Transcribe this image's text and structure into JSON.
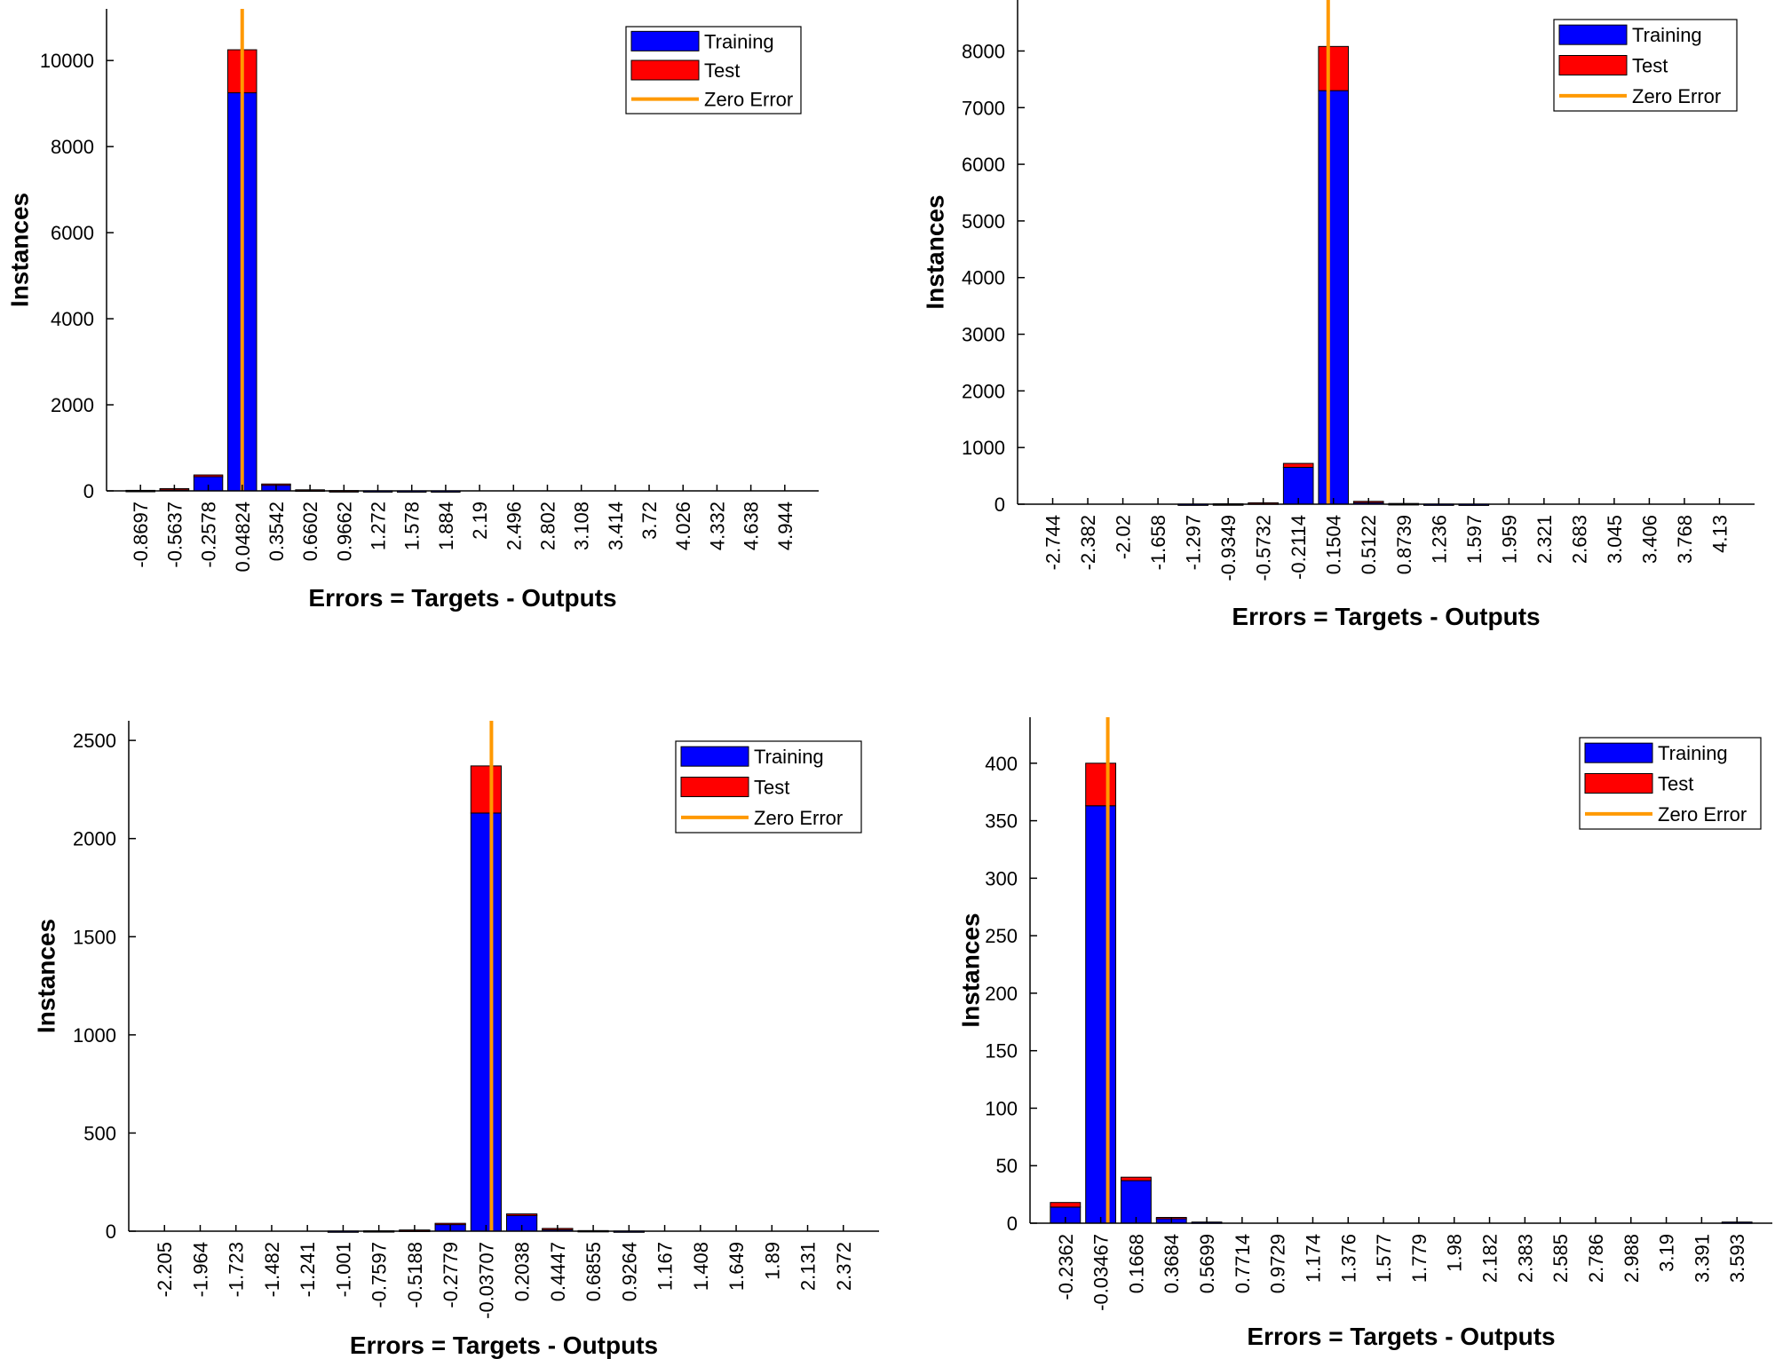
{
  "colors": {
    "training": "#0000ff",
    "test": "#ff0000",
    "zero_error": "#ff9900",
    "axis": "#000000"
  },
  "chart_data": [
    {
      "type": "bar",
      "stacked": true,
      "title": "",
      "xlabel": "Errors = Targets - Outputs",
      "ylabel": "Instances",
      "ylim": [
        0,
        11200
      ],
      "yticks": [
        "0",
        "2000",
        "4000",
        "6000",
        "8000",
        "10000"
      ],
      "categories": [
        "-0.8697",
        "-0.5637",
        "-0.2578",
        "0.04824",
        "0.3542",
        "0.6602",
        "0.9662",
        "1.272",
        "1.578",
        "1.884",
        "2.19",
        "2.496",
        "2.802",
        "3.108",
        "3.414",
        "3.72",
        "4.026",
        "4.332",
        "4.638",
        "4.944"
      ],
      "series": [
        {
          "name": "Training",
          "values": [
            10,
            45,
            330,
            9250,
            140,
            20,
            5,
            2,
            1,
            1,
            0,
            0,
            0,
            0,
            0,
            0,
            0,
            0,
            0,
            0
          ]
        },
        {
          "name": "Test",
          "values": [
            2,
            8,
            40,
            1000,
            20,
            5,
            1,
            0,
            0,
            0,
            0,
            0,
            0,
            0,
            0,
            0,
            0,
            0,
            0,
            0
          ]
        }
      ],
      "zero_error_bin": 3,
      "legend": {
        "position": "top-right",
        "entries": [
          "Training",
          "Test",
          "Zero Error"
        ]
      }
    },
    {
      "type": "bar",
      "stacked": true,
      "title": "",
      "xlabel": "Errors = Targets - Outputs",
      "ylabel": "Instances",
      "ylim": [
        0,
        8900
      ],
      "yticks": [
        "0",
        "1000",
        "2000",
        "3000",
        "4000",
        "5000",
        "6000",
        "7000",
        "8000"
      ],
      "categories": [
        "-2.744",
        "-2.382",
        "-2.02",
        "-1.658",
        "-1.297",
        "-0.9349",
        "-0.5732",
        "-0.2114",
        "0.1504",
        "0.5122",
        "0.8739",
        "1.236",
        "1.597",
        "1.959",
        "2.321",
        "2.683",
        "3.045",
        "3.406",
        "3.768",
        "4.13"
      ],
      "series": [
        {
          "name": "Training",
          "values": [
            0,
            0,
            0,
            0,
            2,
            5,
            20,
            650,
            7300,
            40,
            10,
            2,
            1,
            0,
            0,
            0,
            0,
            0,
            0,
            0
          ]
        },
        {
          "name": "Test",
          "values": [
            0,
            0,
            0,
            0,
            0,
            1,
            5,
            70,
            780,
            10,
            2,
            0,
            0,
            0,
            0,
            0,
            0,
            0,
            0,
            0
          ]
        }
      ],
      "zero_error_bin": 7.85,
      "legend": {
        "position": "top-right",
        "entries": [
          "Training",
          "Test",
          "Zero Error"
        ]
      }
    },
    {
      "type": "bar",
      "stacked": true,
      "title": "",
      "xlabel": "Errors = Targets - Outputs",
      "ylabel": "Instances",
      "ylim": [
        0,
        2600
      ],
      "yticks": [
        "0",
        "500",
        "1000",
        "1500",
        "2000",
        "2500"
      ],
      "categories": [
        "-2.205",
        "-1.964",
        "-1.723",
        "-1.482",
        "-1.241",
        "-1.001",
        "-0.7597",
        "-0.5188",
        "-0.2779",
        "-0.03707",
        "0.2038",
        "0.4447",
        "0.6855",
        "0.9264",
        "1.167",
        "1.408",
        "1.649",
        "1.89",
        "2.131",
        "2.372"
      ],
      "series": [
        {
          "name": "Training",
          "values": [
            0,
            0,
            0,
            0,
            0,
            1,
            2,
            5,
            35,
            2130,
            80,
            12,
            3,
            1,
            0,
            0,
            0,
            0,
            0,
            0
          ]
        },
        {
          "name": "Test",
          "values": [
            0,
            0,
            0,
            0,
            0,
            0,
            0,
            1,
            5,
            240,
            8,
            2,
            0,
            0,
            0,
            0,
            0,
            0,
            0,
            0
          ]
        }
      ],
      "zero_error_bin": 9.15,
      "legend": {
        "position": "top-right",
        "entries": [
          "Training",
          "Test",
          "Zero Error"
        ]
      }
    },
    {
      "type": "bar",
      "stacked": true,
      "title": "",
      "xlabel": "Errors = Targets - Outputs",
      "ylabel": "Instances",
      "ylim": [
        0,
        440
      ],
      "yticks": [
        "0",
        "50",
        "100",
        "150",
        "200",
        "250",
        "300",
        "350",
        "400"
      ],
      "categories": [
        "-0.2362",
        "-0.03467",
        "0.1668",
        "0.3684",
        "0.5699",
        "0.7714",
        "0.9729",
        "1.174",
        "1.376",
        "1.577",
        "1.779",
        "1.98",
        "2.182",
        "2.383",
        "2.585",
        "2.786",
        "2.988",
        "3.19",
        "3.391",
        "3.593"
      ],
      "series": [
        {
          "name": "Training",
          "values": [
            14,
            363,
            37,
            4,
            1,
            0,
            0,
            0,
            0,
            0,
            0,
            0,
            0,
            0,
            0,
            0,
            0,
            0,
            0,
            1
          ]
        },
        {
          "name": "Test",
          "values": [
            4,
            37,
            3,
            1,
            0,
            0,
            0,
            0,
            0,
            0,
            0,
            0,
            0,
            0,
            0,
            0,
            0,
            0,
            0,
            0
          ]
        }
      ],
      "zero_error_bin": 1.2,
      "legend": {
        "position": "top-right",
        "entries": [
          "Training",
          "Test",
          "Zero Error"
        ]
      }
    }
  ]
}
